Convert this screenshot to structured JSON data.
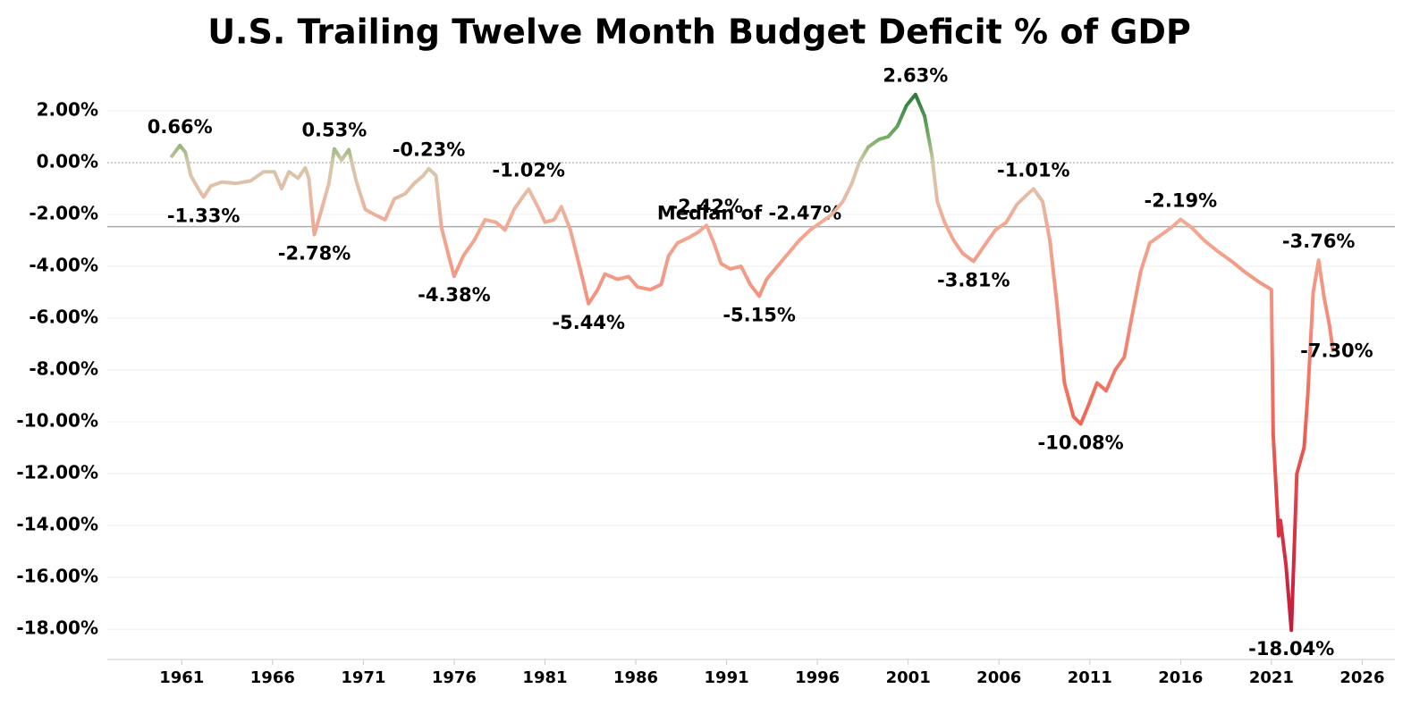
{
  "chart_data": {
    "type": "line",
    "title": "U.S. Trailing Twelve Month Budget Deficit % of GDP",
    "x": [
      1960.4,
      1960.9,
      1961.2,
      1961.5,
      1961.9,
      1962.2,
      1962.6,
      1963.2,
      1964.0,
      1964.8,
      1965.5,
      1966.1,
      1966.5,
      1966.9,
      1967.4,
      1967.8,
      1968.0,
      1968.3,
      1968.7,
      1969.1,
      1969.4,
      1969.8,
      1970.2,
      1970.6,
      1971.1,
      1971.6,
      1972.2,
      1972.7,
      1973.3,
      1973.8,
      1974.3,
      1974.6,
      1975.0,
      1975.3,
      1975.7,
      1976.0,
      1976.5,
      1977.1,
      1977.7,
      1978.3,
      1978.8,
      1979.3,
      1979.8,
      1980.1,
      1980.6,
      1981.0,
      1981.5,
      1981.9,
      1982.4,
      1982.9,
      1983.4,
      1983.9,
      1984.3,
      1985.0,
      1985.6,
      1986.1,
      1986.8,
      1987.4,
      1987.8,
      1988.3,
      1988.9,
      1989.4,
      1989.9,
      1990.3,
      1990.7,
      1991.2,
      1991.8,
      1992.3,
      1992.8,
      1993.2,
      1993.8,
      1994.4,
      1995.0,
      1995.6,
      1996.2,
      1996.8,
      1997.4,
      1997.9,
      1998.3,
      1998.8,
      1999.4,
      1999.9,
      2000.4,
      2000.9,
      2001.4,
      2001.9,
      2002.3,
      2002.6,
      2003.0,
      2003.5,
      2004.0,
      2004.6,
      2005.2,
      2005.8,
      2006.4,
      2007.0,
      2007.6,
      2007.9,
      2008.4,
      2008.8,
      2009.2,
      2009.6,
      2010.1,
      2010.5,
      2010.9,
      2011.4,
      2011.9,
      2012.4,
      2012.9,
      2013.3,
      2013.8,
      2014.3,
      2014.9,
      2015.5,
      2016.0,
      2016.6,
      2017.3,
      2018.0,
      2018.8,
      2019.5,
      2020.3,
      2021.0,
      2021.1,
      2021.4,
      2021.5,
      2021.8,
      2022.1,
      2022.4,
      2022.8,
      2023.0,
      2023.3,
      2023.6,
      2023.9,
      2024.2,
      2024.4
    ],
    "values": [
      0.2,
      0.66,
      0.4,
      -0.5,
      -1.0,
      -1.33,
      -0.9,
      -0.75,
      -0.8,
      -0.7,
      -0.35,
      -0.35,
      -1.0,
      -0.35,
      -0.6,
      -0.2,
      -0.6,
      -2.78,
      -1.8,
      -0.8,
      0.53,
      0.1,
      0.5,
      -0.7,
      -1.8,
      -2.0,
      -2.2,
      -1.4,
      -1.2,
      -0.8,
      -0.5,
      -0.23,
      -0.5,
      -2.5,
      -3.6,
      -4.38,
      -3.6,
      -3.0,
      -2.2,
      -2.3,
      -2.6,
      -1.8,
      -1.3,
      -1.02,
      -1.7,
      -2.3,
      -2.2,
      -1.7,
      -2.6,
      -4.0,
      -5.44,
      -4.9,
      -4.3,
      -4.5,
      -4.4,
      -4.8,
      -4.9,
      -4.7,
      -3.6,
      -3.1,
      -2.9,
      -2.7,
      -2.42,
      -3.1,
      -3.9,
      -4.1,
      -4.0,
      -4.7,
      -5.15,
      -4.5,
      -4.0,
      -3.5,
      -3.0,
      -2.6,
      -2.3,
      -2.0,
      -1.5,
      -0.8,
      0.0,
      0.6,
      0.9,
      1.0,
      1.4,
      2.2,
      2.63,
      1.8,
      0.3,
      -1.5,
      -2.3,
      -3.0,
      -3.5,
      -3.81,
      -3.2,
      -2.6,
      -2.3,
      -1.6,
      -1.2,
      -1.01,
      -1.5,
      -3.0,
      -5.5,
      -8.5,
      -9.8,
      -10.08,
      -9.4,
      -8.5,
      -8.8,
      -8.0,
      -7.5,
      -6.0,
      -4.2,
      -3.1,
      -2.8,
      -2.5,
      -2.19,
      -2.5,
      -3.0,
      -3.4,
      -3.8,
      -4.2,
      -4.6,
      -4.9,
      -10.5,
      -14.4,
      -13.8,
      -15.5,
      -18.04,
      -12.0,
      -11.0,
      -9.0,
      -5.0,
      -3.76,
      -5.2,
      -6.3,
      -7.3
    ],
    "annotations": [
      {
        "x": 1960.9,
        "value": 0.66,
        "label": "0.66%"
      },
      {
        "x": 1962.2,
        "value": -1.33,
        "label": "-1.33%"
      },
      {
        "x": 1968.3,
        "value": -2.78,
        "label": "-2.78%"
      },
      {
        "x": 1969.4,
        "value": 0.53,
        "label": "0.53%"
      },
      {
        "x": 1974.6,
        "value": -0.23,
        "label": "-0.23%"
      },
      {
        "x": 1976.0,
        "value": -4.38,
        "label": "-4.38%"
      },
      {
        "x": 1980.1,
        "value": -1.02,
        "label": "-1.02%"
      },
      {
        "x": 1983.4,
        "value": -5.44,
        "label": "-5.44%"
      },
      {
        "x": 1989.9,
        "value": -2.42,
        "label": "-2.42%"
      },
      {
        "x": 1992.8,
        "value": -5.15,
        "label": "-5.15%"
      },
      {
        "x": 2001.4,
        "value": 2.63,
        "label": "2.63%"
      },
      {
        "x": 2004.6,
        "value": -3.81,
        "label": "-3.81%"
      },
      {
        "x": 2007.9,
        "value": -1.01,
        "label": "-1.01%"
      },
      {
        "x": 2010.5,
        "value": -10.08,
        "label": "-10.08%"
      },
      {
        "x": 2016.0,
        "value": -2.19,
        "label": "-2.19%"
      },
      {
        "x": 2022.1,
        "value": -18.04,
        "label": "-18.04%"
      },
      {
        "x": 2023.6,
        "value": -3.76,
        "label": "-3.76%"
      },
      {
        "x": 2024.4,
        "value": -7.3,
        "label": "-7.30%"
      }
    ],
    "median": {
      "value": -2.47,
      "label": "Median of -2.47%"
    },
    "color_scale": [
      {
        "value": 2.63,
        "color": "#2e7a3c"
      },
      {
        "value": 1.0,
        "color": "#72ad62"
      },
      {
        "value": 0.0,
        "color": "#d4c8aa"
      },
      {
        "value": -1.0,
        "color": "#e3bfa8"
      },
      {
        "value": -2.5,
        "color": "#f2a892"
      },
      {
        "value": -6.0,
        "color": "#f48c7a"
      },
      {
        "value": -10.0,
        "color": "#f06656"
      },
      {
        "value": -14.0,
        "color": "#d83444"
      },
      {
        "value": -18.04,
        "color": "#c01c3c"
      }
    ],
    "xlim": [
      1956.9,
      2027.8
    ],
    "xticks": [
      1961,
      1966,
      1971,
      1976,
      1981,
      1986,
      1991,
      1996,
      2001,
      2006,
      2011,
      2016,
      2021,
      2026
    ],
    "ylim": [
      -19.17,
      3.69
    ],
    "yticks": [
      {
        "value": 2,
        "label": "2.00%"
      },
      {
        "value": 0,
        "label": "0.00%"
      },
      {
        "value": -2,
        "label": "-2.00%"
      },
      {
        "value": -4,
        "label": "-4.00%"
      },
      {
        "value": -6,
        "label": "-6.00%"
      },
      {
        "value": -8,
        "label": "-8.00%"
      },
      {
        "value": -10,
        "label": "-10.00%"
      },
      {
        "value": -12,
        "label": "-12.00%"
      },
      {
        "value": -14,
        "label": "-14.00%"
      },
      {
        "value": -16,
        "label": "-16.00%"
      },
      {
        "value": -18,
        "label": "-18.00%"
      }
    ],
    "grid": true
  }
}
